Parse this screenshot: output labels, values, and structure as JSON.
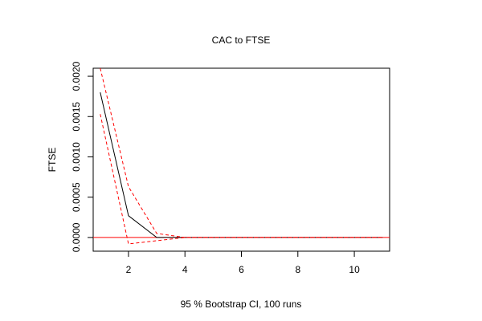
{
  "chart_data": {
    "type": "line",
    "title": "CAC to FTSE",
    "xlabel": "95 % Bootstrap CI,  100 runs",
    "ylabel": "FTSE",
    "xlim": [
      0.75,
      11.25
    ],
    "ylim": [
      -0.00017,
      0.0021
    ],
    "x_ticks": [
      2,
      4,
      6,
      8,
      10
    ],
    "x_tick_labels": [
      "2",
      "4",
      "6",
      "8",
      "10"
    ],
    "y_ticks": [
      0.0,
      0.0005,
      0.001,
      0.0015,
      0.002
    ],
    "y_tick_labels": [
      "0.0000",
      "0.0005",
      "0.0010",
      "0.0015",
      "0.0020"
    ],
    "grid": false,
    "x": [
      1,
      2,
      3,
      4,
      5,
      6,
      7,
      8,
      9,
      10,
      11
    ],
    "series": [
      {
        "values": [
          0.0018,
          0.00027,
          0.0,
          0.0,
          0.0,
          0.0,
          0.0,
          0.0,
          0.0,
          0.0,
          0.0
        ],
        "color": "#000000",
        "style": "solid"
      },
      {
        "values": [
          0.0021,
          0.00063,
          5e-05,
          0.0,
          0.0,
          0.0,
          0.0,
          0.0,
          0.0,
          0.0,
          0.0
        ],
        "color": "#ff0000",
        "style": "dashed"
      },
      {
        "values": [
          0.00153,
          -8e-05,
          -4e-05,
          0.0,
          0.0,
          0.0,
          0.0,
          0.0,
          0.0,
          0.0,
          0.0
        ],
        "color": "#ff0000",
        "style": "dashed"
      }
    ],
    "hline": {
      "y": 0.0,
      "color": "#ff0000"
    }
  }
}
